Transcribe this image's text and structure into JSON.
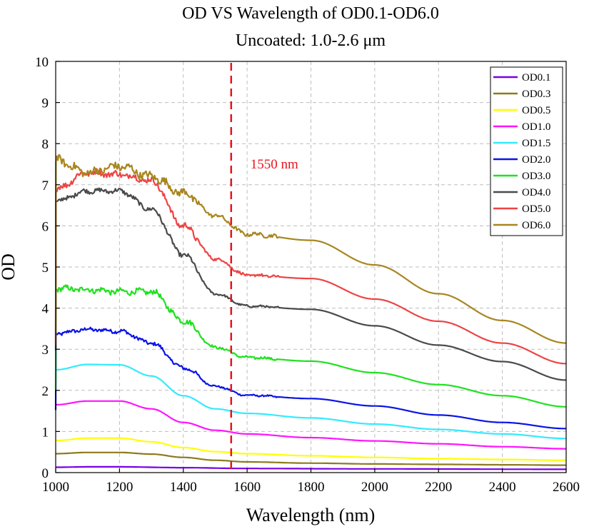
{
  "chart_data": {
    "type": "line",
    "title": "OD VS Wavelength of OD0.1-OD6.0",
    "subtitle": "Uncoated: 1.0-2.6 μm",
    "xlabel": "Wavelength (nm)",
    "ylabel": "OD",
    "xlim": [
      1000,
      2600
    ],
    "ylim": [
      0,
      10
    ],
    "xticks": [
      "1000",
      "1200",
      "1400",
      "1600",
      "1800",
      "2000",
      "2200",
      "2400",
      "2600"
    ],
    "yticks": [
      "0",
      "1",
      "2",
      "3",
      "4",
      "5",
      "6",
      "7",
      "8",
      "9",
      "10"
    ],
    "grid": true,
    "legend_position": "top-right",
    "annotation": {
      "text": "1550 nm",
      "x": 1550,
      "color": "#e8141b"
    },
    "series": [
      {
        "name": "OD0.1",
        "color": "#7a00e6",
        "noise": 0,
        "points": [
          [
            1000,
            0.13
          ],
          [
            1100,
            0.14
          ],
          [
            1200,
            0.14
          ],
          [
            1400,
            0.12
          ],
          [
            1600,
            0.1
          ],
          [
            2000,
            0.09
          ],
          [
            2600,
            0.08
          ]
        ]
      },
      {
        "name": "OD0.3",
        "color": "#8c7b1e",
        "noise": 0,
        "points": [
          [
            1000,
            0.46
          ],
          [
            1100,
            0.49
          ],
          [
            1200,
            0.49
          ],
          [
            1300,
            0.45
          ],
          [
            1400,
            0.37
          ],
          [
            1500,
            0.3
          ],
          [
            1600,
            0.26
          ],
          [
            1800,
            0.23
          ],
          [
            2000,
            0.21
          ],
          [
            2200,
            0.2
          ],
          [
            2400,
            0.19
          ],
          [
            2600,
            0.18
          ]
        ]
      },
      {
        "name": "OD0.5",
        "color": "#ffff00",
        "noise": 0,
        "points": [
          [
            1000,
            0.78
          ],
          [
            1100,
            0.84
          ],
          [
            1200,
            0.84
          ],
          [
            1300,
            0.75
          ],
          [
            1400,
            0.61
          ],
          [
            1500,
            0.51
          ],
          [
            1600,
            0.46
          ],
          [
            1800,
            0.41
          ],
          [
            2000,
            0.37
          ],
          [
            2200,
            0.34
          ],
          [
            2400,
            0.32
          ],
          [
            2600,
            0.3
          ]
        ]
      },
      {
        "name": "OD1.0",
        "color": "#ff14ff",
        "noise": 0,
        "points": [
          [
            1000,
            1.65
          ],
          [
            1100,
            1.74
          ],
          [
            1200,
            1.74
          ],
          [
            1300,
            1.55
          ],
          [
            1400,
            1.22
          ],
          [
            1500,
            1.03
          ],
          [
            1600,
            0.94
          ],
          [
            1800,
            0.85
          ],
          [
            2000,
            0.77
          ],
          [
            2200,
            0.7
          ],
          [
            2400,
            0.63
          ],
          [
            2600,
            0.58
          ]
        ]
      },
      {
        "name": "OD1.5",
        "color": "#33eaff",
        "noise": 0,
        "points": [
          [
            1000,
            2.5
          ],
          [
            1100,
            2.63
          ],
          [
            1200,
            2.62
          ],
          [
            1300,
            2.35
          ],
          [
            1400,
            1.87
          ],
          [
            1500,
            1.55
          ],
          [
            1600,
            1.44
          ],
          [
            1800,
            1.33
          ],
          [
            2000,
            1.18
          ],
          [
            2200,
            1.05
          ],
          [
            2400,
            0.94
          ],
          [
            2600,
            0.83
          ]
        ]
      },
      {
        "name": "OD2.0",
        "color": "#0a14e6",
        "noise": 0.04,
        "points": [
          [
            1000,
            3.38
          ],
          [
            1100,
            3.48
          ],
          [
            1200,
            3.44
          ],
          [
            1300,
            3.15
          ],
          [
            1400,
            2.55
          ],
          [
            1500,
            2.1
          ],
          [
            1600,
            1.88
          ],
          [
            1800,
            1.8
          ],
          [
            2000,
            1.62
          ],
          [
            2200,
            1.4
          ],
          [
            2400,
            1.22
          ],
          [
            2600,
            1.07
          ]
        ]
      },
      {
        "name": "OD3.0",
        "color": "#1fe11f",
        "noise": 0.06,
        "points": [
          [
            1000,
            4.48
          ],
          [
            1100,
            4.45
          ],
          [
            1200,
            4.4
          ],
          [
            1300,
            4.4
          ],
          [
            1400,
            3.7
          ],
          [
            1500,
            3.05
          ],
          [
            1600,
            2.8
          ],
          [
            1800,
            2.71
          ],
          [
            2000,
            2.43
          ],
          [
            2200,
            2.14
          ],
          [
            2400,
            1.87
          ],
          [
            2600,
            1.6
          ]
        ]
      },
      {
        "name": "OD4.0",
        "color": "#4a4a4a",
        "noise": 0.05,
        "points": [
          [
            1000,
            6.6
          ],
          [
            1100,
            6.85
          ],
          [
            1200,
            6.85
          ],
          [
            1300,
            6.4
          ],
          [
            1400,
            5.3
          ],
          [
            1500,
            4.35
          ],
          [
            1600,
            4.05
          ],
          [
            1800,
            3.97
          ],
          [
            2000,
            3.57
          ],
          [
            2200,
            3.1
          ],
          [
            2400,
            2.7
          ],
          [
            2600,
            2.25
          ]
        ]
      },
      {
        "name": "OD5.0",
        "color": "#ee4444",
        "noise": 0.07,
        "points": [
          [
            1000,
            6.9
          ],
          [
            1100,
            7.3
          ],
          [
            1200,
            7.25
          ],
          [
            1300,
            7.1
          ],
          [
            1400,
            6.0
          ],
          [
            1500,
            5.2
          ],
          [
            1600,
            4.8
          ],
          [
            1800,
            4.72
          ],
          [
            2000,
            4.22
          ],
          [
            2200,
            3.68
          ],
          [
            2400,
            3.15
          ],
          [
            2600,
            2.65
          ]
        ]
      },
      {
        "name": "OD6.0",
        "color": "#a8861e",
        "noise": 0.09,
        "points": [
          [
            1000,
            7.6
          ],
          [
            1100,
            7.3
          ],
          [
            1200,
            7.45
          ],
          [
            1300,
            7.2
          ],
          [
            1400,
            6.8
          ],
          [
            1500,
            6.25
          ],
          [
            1600,
            5.8
          ],
          [
            1800,
            5.65
          ],
          [
            2000,
            5.05
          ],
          [
            2200,
            4.35
          ],
          [
            2400,
            3.7
          ],
          [
            2600,
            3.15
          ]
        ]
      }
    ]
  }
}
